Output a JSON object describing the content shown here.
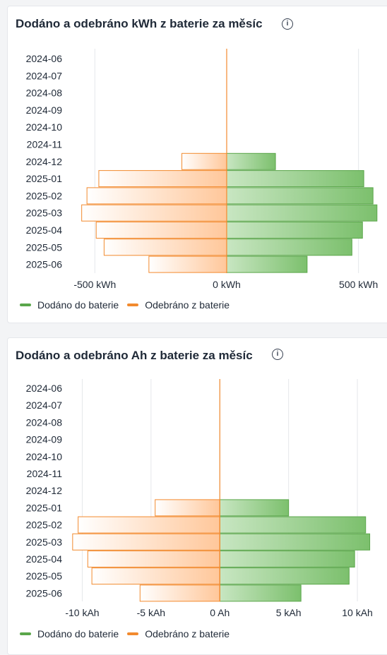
{
  "colors": {
    "delivered": "#5aa64a",
    "withdrawn": "#f28a2e"
  },
  "chart_data": [
    {
      "type": "bar",
      "orientation": "horizontal",
      "title": "Dodáno a odebráno kWh z baterie za měsíc",
      "categories": [
        "2024-06",
        "2024-07",
        "2024-08",
        "2024-09",
        "2024-10",
        "2024-11",
        "2024-12",
        "2025-01",
        "2025-02",
        "2025-03",
        "2025-04",
        "2025-05",
        "2025-06"
      ],
      "series": [
        {
          "name": "Dodáno do baterie",
          "values": [
            0,
            0,
            0,
            0,
            0,
            0,
            185,
            520,
            555,
            570,
            515,
            475,
            305
          ]
        },
        {
          "name": "Odebráno z baterie",
          "values": [
            0,
            0,
            0,
            0,
            0,
            0,
            -170,
            -485,
            -530,
            -550,
            -495,
            -465,
            -295
          ]
        }
      ],
      "xlim": [
        -600,
        600
      ],
      "xticks": [
        -500,
        0,
        500
      ],
      "xtick_labels": [
        "-500 kWh",
        "0 kWh",
        "500 kWh"
      ],
      "grid": true,
      "legend_position": "bottom-left"
    },
    {
      "type": "bar",
      "orientation": "horizontal",
      "title": "Dodáno a odebráno Ah z baterie za měsíc",
      "categories": [
        "2024-06",
        "2024-07",
        "2024-08",
        "2024-09",
        "2024-10",
        "2024-11",
        "2024-12",
        "2025-01",
        "2025-02",
        "2025-03",
        "2025-04",
        "2025-05",
        "2025-06"
      ],
      "series": [
        {
          "name": "Dodáno do baterie",
          "values": [
            0,
            0,
            0,
            0,
            0,
            0,
            0,
            5.0,
            10.6,
            10.9,
            9.8,
            9.4,
            5.9
          ]
        },
        {
          "name": "Odebráno z baterie",
          "values": [
            0,
            0,
            0,
            0,
            0,
            0,
            0,
            -4.7,
            -10.3,
            -10.7,
            -9.6,
            -9.3,
            -5.8
          ]
        }
      ],
      "xlim": [
        -11,
        12
      ],
      "xticks": [
        -10,
        -5,
        0,
        5,
        10
      ],
      "xtick_labels": [
        "-10 kAh",
        "-5 kAh",
        "0 Ah",
        "5 kAh",
        "10 kAh"
      ],
      "grid": true,
      "legend_position": "bottom-left"
    }
  ]
}
